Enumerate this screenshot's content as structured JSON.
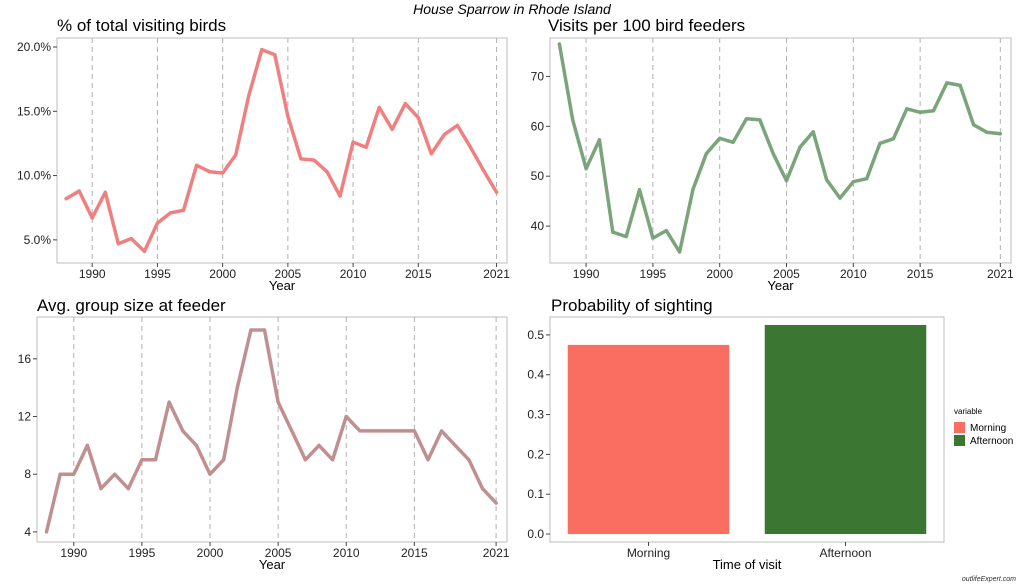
{
  "main_title": "House Sparrow in Rhode Island",
  "watermark": "outlifeExpert.com",
  "chart_data": [
    {
      "type": "line",
      "title": "% of total visiting birds",
      "xlabel": "Year",
      "ylabel": "",
      "color": "#f08080",
      "x": [
        1988,
        1989,
        1990,
        1991,
        1992,
        1993,
        1994,
        1995,
        1996,
        1997,
        1998,
        1999,
        2000,
        2001,
        2002,
        2003,
        2004,
        2005,
        2006,
        2007,
        2008,
        2009,
        2010,
        2011,
        2012,
        2013,
        2014,
        2015,
        2016,
        2017,
        2018,
        2019,
        2020,
        2021
      ],
      "values": [
        8.2,
        8.8,
        6.7,
        8.7,
        4.7,
        5.1,
        4.1,
        6.3,
        7.1,
        7.3,
        10.8,
        10.3,
        10.2,
        11.6,
        16.2,
        19.8,
        19.4,
        14.6,
        11.3,
        11.2,
        10.3,
        8.4,
        12.6,
        12.2,
        15.3,
        13.6,
        15.6,
        14.5,
        11.7,
        13.2,
        13.9,
        12.2,
        10.4,
        8.7
      ],
      "xlim": [
        1987.3,
        2021.8
      ],
      "ylim": [
        3.2,
        20.7
      ],
      "xticks": [
        1990,
        1995,
        2000,
        2005,
        2010,
        2015,
        2021
      ],
      "yticks": [
        5,
        10,
        15,
        20
      ],
      "ytick_labels": [
        "5.0%",
        "10.0%",
        "15.0%",
        "20.0%"
      ],
      "xtick_labels": [
        "1990",
        "1995",
        "2000",
        "2005",
        "2010",
        "2015",
        "2021"
      ],
      "grid": "dashed vertical"
    },
    {
      "type": "line",
      "title": "Visits per 100 bird feeders",
      "xlabel": "Year",
      "ylabel": "",
      "color": "#7aa57a",
      "x": [
        1988,
        1989,
        1990,
        1991,
        1992,
        1993,
        1994,
        1995,
        1996,
        1997,
        1998,
        1999,
        2000,
        2001,
        2002,
        2003,
        2004,
        2005,
        2006,
        2007,
        2008,
        2009,
        2010,
        2011,
        2012,
        2013,
        2014,
        2015,
        2016,
        2017,
        2018,
        2019,
        2020,
        2021
      ],
      "values": [
        76.5,
        61.3,
        51.5,
        57.3,
        38.8,
        37.9,
        47.3,
        37.6,
        39.1,
        34.8,
        47.4,
        54.5,
        57.6,
        56.8,
        61.5,
        61.3,
        54.5,
        49.1,
        55.8,
        58.9,
        49.3,
        45.6,
        48.9,
        49.5,
        56.6,
        57.5,
        63.5,
        62.8,
        63.1,
        68.7,
        68.2,
        60.3,
        58.8,
        58.5
      ],
      "xlim": [
        1987.3,
        2021.8
      ],
      "ylim": [
        32.6,
        77.7
      ],
      "xticks": [
        1990,
        1995,
        2000,
        2005,
        2010,
        2015,
        2021
      ],
      "yticks": [
        40,
        50,
        60,
        70
      ],
      "ytick_labels": [
        "40",
        "50",
        "60",
        "70"
      ],
      "xtick_labels": [
        "1990",
        "1995",
        "2000",
        "2005",
        "2010",
        "2015",
        "2021"
      ],
      "grid": "dashed vertical"
    },
    {
      "type": "line",
      "title": "Avg. group size at feeder",
      "xlabel": "Year",
      "ylabel": "",
      "color": "#c08f8f",
      "x": [
        1988,
        1989,
        1990,
        1991,
        1992,
        1993,
        1994,
        1995,
        1996,
        1997,
        1998,
        1999,
        2000,
        2001,
        2002,
        2003,
        2004,
        2005,
        2006,
        2007,
        2008,
        2009,
        2010,
        2011,
        2012,
        2013,
        2014,
        2015,
        2016,
        2017,
        2018,
        2019,
        2020,
        2021
      ],
      "values": [
        4,
        8,
        8,
        10,
        7,
        8,
        7,
        9,
        9,
        13,
        11,
        10,
        8,
        9,
        14,
        18,
        18,
        13,
        11,
        9,
        10,
        9,
        12,
        11,
        11,
        11,
        11,
        11,
        9,
        11,
        10,
        9,
        7,
        6
      ],
      "xlim": [
        1987.3,
        2021.8
      ],
      "ylim": [
        3.3,
        18.9
      ],
      "xticks": [
        1990,
        1995,
        2000,
        2005,
        2010,
        2015,
        2021
      ],
      "yticks": [
        4,
        8,
        12,
        16
      ],
      "ytick_labels": [
        "4",
        "8",
        "12",
        "16"
      ],
      "xtick_labels": [
        "1990",
        "1995",
        "2000",
        "2005",
        "2010",
        "2015",
        "2021"
      ],
      "grid": "dashed vertical"
    },
    {
      "type": "bar",
      "title": "Probability of sighting",
      "xlabel": "Time of visit",
      "ylabel": "",
      "categories": [
        "Morning",
        "Afternoon"
      ],
      "values": [
        0.475,
        0.525
      ],
      "colors": [
        "#fa6e61",
        "#3b7633"
      ],
      "ylim": [
        -0.02,
        0.545
      ],
      "yticks": [
        0,
        0.1,
        0.2,
        0.3,
        0.4,
        0.5
      ],
      "ytick_labels": [
        "0.0",
        "0.1",
        "0.2",
        "0.3",
        "0.4",
        "0.5"
      ],
      "legend": {
        "title": "variable",
        "position": "right",
        "entries": [
          {
            "label": "Morning",
            "color": "#fa6e61"
          },
          {
            "label": "Afternoon",
            "color": "#3b7633"
          }
        ]
      },
      "grid": "off"
    }
  ]
}
